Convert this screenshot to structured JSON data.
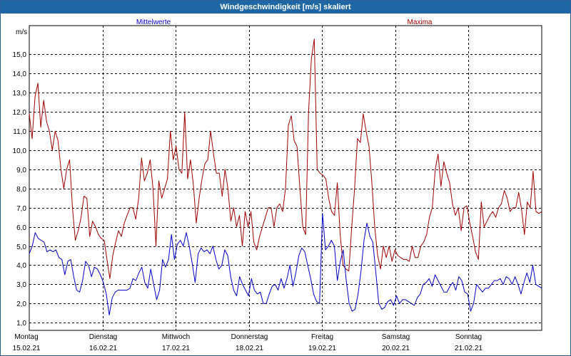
{
  "window": {
    "title": "Windgeschwindigkeit [m/s] skaliert"
  },
  "chart_data": {
    "type": "line",
    "title": "Windgeschwindigkeit [m/s] skaliert",
    "ylabel": "m/s",
    "ylim": [
      0.6,
      16.5
    ],
    "yticks": [
      1.0,
      2.0,
      3.0,
      4.0,
      5.0,
      6.0,
      7.0,
      8.0,
      9.0,
      10.0,
      11.0,
      12.0,
      13.0,
      14.0,
      15.0
    ],
    "ytick_labels": [
      "1,0",
      "2,0",
      "3,0",
      "4,0",
      "5,0",
      "6,0",
      "7,0",
      "8,0",
      "9,0",
      "10,0",
      "11,0",
      "12,0",
      "13,0",
      "14,0",
      "15,0"
    ],
    "xlim": [
      0,
      7.0
    ],
    "xticks": [
      {
        "day": "Montag",
        "date": "15.02.21"
      },
      {
        "day": "Dienstag",
        "date": "16.02.21"
      },
      {
        "day": "Mittwoch",
        "date": "17.02.21"
      },
      {
        "day": "Donnerstag",
        "date": "18.02.21"
      },
      {
        "day": "Freitag",
        "date": "19.02.21"
      },
      {
        "day": "Samstag",
        "date": "20.02.21"
      },
      {
        "day": "Sonntag",
        "date": "21.02.21"
      }
    ],
    "grid": true,
    "colors": {
      "mittelwerte": "#0000c8",
      "maxima": "#a00000",
      "grid": "#000000"
    },
    "series": [
      {
        "name": "Maxima",
        "values": [
          11.9,
          10.6,
          12.8,
          13.5,
          11.2,
          12.6,
          11.5,
          11.0,
          10.0,
          11.0,
          10.5,
          9.0,
          8.0,
          9.0,
          9.5,
          7.0,
          5.3,
          5.8,
          6.5,
          7.6,
          7.5,
          5.5,
          6.3,
          6.0,
          5.6,
          5.4,
          5.3,
          4.3,
          3.3,
          4.5,
          5.2,
          5.8,
          5.5,
          6.2,
          6.6,
          7.0,
          7.0,
          6.4,
          7.5,
          9.6,
          8.4,
          8.8,
          9.5,
          8.0,
          5.0,
          8.4,
          7.5,
          8.0,
          8.5,
          11.0,
          9.5,
          10.2,
          9.0,
          8.8,
          12.0,
          8.5,
          9.5,
          8.2,
          6.2,
          7.5,
          8.5,
          9.3,
          9.5,
          11.0,
          9.8,
          8.8,
          8.8,
          7.6,
          9.0,
          8.0,
          6.3,
          7.0,
          6.0,
          6.6,
          5.0,
          6.8,
          6.0,
          6.8,
          5.2,
          4.8,
          5.5,
          6.0,
          6.5,
          7.0,
          7.0,
          6.0,
          7.0,
          7.2,
          6.8,
          8.0,
          11.3,
          11.8,
          10.5,
          10.2,
          8.0,
          6.0,
          5.6,
          12.0,
          14.8,
          15.8,
          9.0,
          8.8,
          8.7,
          8.5,
          7.5,
          6.8,
          6.6,
          8.3,
          5.6,
          4.0,
          3.8,
          3.7,
          6.0,
          8.0,
          10.6,
          10.4,
          11.9,
          11.0,
          10.2,
          8.3,
          6.0,
          4.5,
          3.8,
          5.0,
          4.4,
          5.0,
          4.2,
          4.8,
          4.5,
          4.4,
          4.3,
          4.3,
          4.2,
          5.0,
          4.4,
          4.4,
          5.0,
          5.2,
          5.6,
          6.5,
          7.0,
          9.0,
          9.8,
          8.1,
          9.4,
          8.8,
          8.3,
          7.2,
          6.6,
          7.0,
          5.8,
          7.0,
          7.1,
          6.2,
          5.5,
          4.7,
          4.3,
          7.3,
          6.0,
          6.3,
          6.6,
          6.8,
          6.5,
          7.0,
          7.2,
          7.9,
          7.5,
          6.8,
          7.0,
          7.0,
          7.8,
          6.9,
          5.6,
          7.3,
          7.0,
          8.9,
          6.8,
          6.7,
          6.8
        ]
      },
      {
        "name": "Mittelwerte",
        "values": [
          4.6,
          5.0,
          5.7,
          5.4,
          5.3,
          5.2,
          4.7,
          4.8,
          4.7,
          4.8,
          4.4,
          4.3,
          3.5,
          4.2,
          4.3,
          3.4,
          2.7,
          2.6,
          3.2,
          4.2,
          4.0,
          3.4,
          3.9,
          3.8,
          3.5,
          3.1,
          2.5,
          1.4,
          2.3,
          2.6,
          2.7,
          2.7,
          2.7,
          2.7,
          2.8,
          3.3,
          3.2,
          3.6,
          3.9,
          3.1,
          2.8,
          3.8,
          3.0,
          2.2,
          2.7,
          4.3,
          3.9,
          4.3,
          5.6,
          4.3,
          5.1,
          5.3,
          5.0,
          5.7,
          5.0,
          4.1,
          3.1,
          4.6,
          4.9,
          4.7,
          4.8,
          4.6,
          5.0,
          4.3,
          3.8,
          4.0,
          4.8,
          4.5,
          3.4,
          2.7,
          2.4,
          3.4,
          3.0,
          2.7,
          2.4,
          3.3,
          2.7,
          2.5,
          2.6,
          2.0,
          2.0,
          2.5,
          2.9,
          3.0,
          2.7,
          3.3,
          2.8,
          3.3,
          4.0,
          2.9,
          3.6,
          4.5,
          4.9,
          4.7,
          4.0,
          3.3,
          2.5,
          2.1,
          2.0,
          6.7,
          4.8,
          5.0,
          5.3,
          5.0,
          3.2,
          4.2,
          4.8,
          3.2,
          2.0,
          1.6,
          1.7,
          2.5,
          3.7,
          5.3,
          6.2,
          5.5,
          5.2,
          3.6,
          2.0,
          1.7,
          1.8,
          2.1,
          2.2,
          1.9,
          2.4,
          2.0,
          2.2,
          2.2,
          2.1,
          2.0,
          1.9,
          2.3,
          2.5,
          3.0,
          3.1,
          3.3,
          2.9,
          3.5,
          3.2,
          2.9,
          2.6,
          2.6,
          2.9,
          3.1,
          2.7,
          3.4,
          3.2,
          2.6,
          2.5,
          1.6,
          2.0,
          3.0,
          2.8,
          2.6,
          2.8,
          2.8,
          3.0,
          3.2,
          3.2,
          3.3,
          3.0,
          3.4,
          3.3,
          3.0,
          3.4,
          3.0,
          2.5,
          3.1,
          3.6,
          3.1,
          4.0,
          3.0,
          2.9,
          2.8
        ]
      }
    ]
  }
}
